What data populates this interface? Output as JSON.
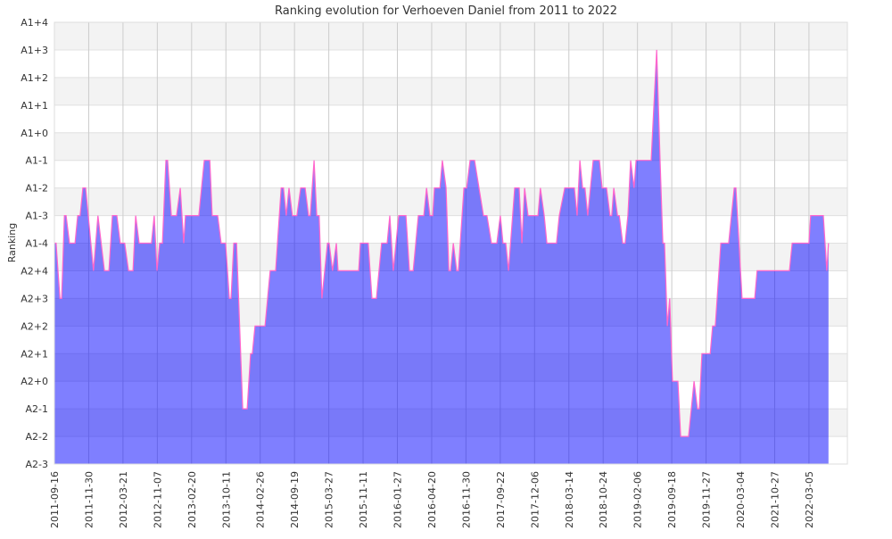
{
  "chart_data": {
    "type": "area",
    "title": "Ranking evolution for Verhoeven Daniel from 2011 to 2022",
    "xlabel": "",
    "ylabel": "Ranking",
    "y_categories": [
      "A2-3",
      "A2-2",
      "A2-1",
      "A2+0",
      "A2+1",
      "A2+2",
      "A2+3",
      "A2+4",
      "A1-4",
      "A1-3",
      "A1-2",
      "A1-1",
      "A1+0",
      "A1+1",
      "A1+2",
      "A1+3",
      "A1+4"
    ],
    "x_tick_labels": [
      "2011-09-16",
      "2011-11-30",
      "2012-03-21",
      "2012-11-07",
      "2013-02-20",
      "2013-10-11",
      "2014-02-26",
      "2014-09-19",
      "2015-03-27",
      "2015-11-11",
      "2016-01-27",
      "2016-04-20",
      "2016-11-30",
      "2017-09-22",
      "2017-12-06",
      "2018-03-14",
      "2018-10-24",
      "2019-02-06",
      "2019-09-18",
      "2019-11-27",
      "2020-03-04",
      "2021-10-27",
      "2022-03-05"
    ],
    "x_units": "tick index (0 = first tick label)",
    "grid": true,
    "colors": {
      "fill": "#0000ff",
      "line": "#ff66cc",
      "band": "#f3f3f3",
      "grid": "#cccccc"
    },
    "series": [
      {
        "name": "Verhoeven Daniel",
        "points": [
          [
            0,
            8
          ],
          [
            0.05,
            8
          ],
          [
            0.16,
            6
          ],
          [
            0.21,
            6
          ],
          [
            0.29,
            9
          ],
          [
            0.34,
            9
          ],
          [
            0.44,
            8
          ],
          [
            0.6,
            8
          ],
          [
            0.68,
            9
          ],
          [
            0.75,
            9
          ],
          [
            0.83,
            10
          ],
          [
            0.91,
            10
          ],
          [
            1.14,
            7
          ],
          [
            1.27,
            9
          ],
          [
            1.46,
            7
          ],
          [
            1.59,
            7
          ],
          [
            1.69,
            9
          ],
          [
            1.82,
            9
          ],
          [
            1.92,
            8
          ],
          [
            2.05,
            8
          ],
          [
            2.16,
            7
          ],
          [
            2.29,
            7
          ],
          [
            2.37,
            9
          ],
          [
            2.47,
            8
          ],
          [
            2.83,
            8
          ],
          [
            2.91,
            9
          ],
          [
            2.99,
            7
          ],
          [
            3.07,
            8
          ],
          [
            3.15,
            8
          ],
          [
            3.25,
            11
          ],
          [
            3.3,
            11
          ],
          [
            3.41,
            9
          ],
          [
            3.56,
            9
          ],
          [
            3.67,
            10
          ],
          [
            3.77,
            8
          ],
          [
            3.82,
            9
          ],
          [
            4.21,
            9
          ],
          [
            4.37,
            11
          ],
          [
            4.53,
            11
          ],
          [
            4.6,
            9
          ],
          [
            4.76,
            9
          ],
          [
            4.86,
            8
          ],
          [
            4.99,
            8
          ],
          [
            5.1,
            6
          ],
          [
            5.15,
            6
          ],
          [
            5.23,
            8
          ],
          [
            5.31,
            8
          ],
          [
            5.49,
            2
          ],
          [
            5.62,
            2
          ],
          [
            5.72,
            4
          ],
          [
            5.77,
            4
          ],
          [
            5.85,
            5
          ],
          [
            6.14,
            5
          ],
          [
            6.29,
            7
          ],
          [
            6.45,
            7
          ],
          [
            6.61,
            10
          ],
          [
            6.68,
            10
          ],
          [
            6.76,
            9
          ],
          [
            6.84,
            10
          ],
          [
            6.94,
            9
          ],
          [
            7.07,
            9
          ],
          [
            7.18,
            10
          ],
          [
            7.31,
            10
          ],
          [
            7.41,
            9
          ],
          [
            7.46,
            9
          ],
          [
            7.57,
            11
          ],
          [
            7.65,
            9
          ],
          [
            7.72,
            9
          ],
          [
            7.8,
            6
          ],
          [
            7.96,
            8
          ],
          [
            8.01,
            8
          ],
          [
            8.11,
            7
          ],
          [
            8.22,
            8
          ],
          [
            8.27,
            7
          ],
          [
            8.87,
            7
          ],
          [
            8.92,
            8
          ],
          [
            9.15,
            8
          ],
          [
            9.26,
            6
          ],
          [
            9.39,
            6
          ],
          [
            9.54,
            8
          ],
          [
            9.7,
            8
          ],
          [
            9.78,
            9
          ],
          [
            9.88,
            7
          ],
          [
            10.04,
            9
          ],
          [
            10.25,
            9
          ],
          [
            10.35,
            7
          ],
          [
            10.46,
            7
          ],
          [
            10.61,
            9
          ],
          [
            10.77,
            9
          ],
          [
            10.85,
            10
          ],
          [
            10.95,
            9
          ],
          [
            11.03,
            9
          ],
          [
            11.08,
            10
          ],
          [
            11.24,
            10
          ],
          [
            11.31,
            11
          ],
          [
            11.42,
            10
          ],
          [
            11.5,
            7
          ],
          [
            11.55,
            7
          ],
          [
            11.63,
            8
          ],
          [
            11.73,
            7
          ],
          [
            11.78,
            7
          ],
          [
            11.94,
            10
          ],
          [
            12.02,
            10
          ],
          [
            12.12,
            11
          ],
          [
            12.25,
            11
          ],
          [
            12.38,
            10
          ],
          [
            12.51,
            9
          ],
          [
            12.61,
            9
          ],
          [
            12.74,
            8
          ],
          [
            12.9,
            8
          ],
          [
            13,
            9
          ],
          [
            13.08,
            8
          ],
          [
            13.16,
            8
          ],
          [
            13.24,
            7
          ],
          [
            13.42,
            10
          ],
          [
            13.55,
            10
          ],
          [
            13.63,
            8
          ],
          [
            13.71,
            10
          ],
          [
            13.81,
            9
          ],
          [
            14.1,
            9
          ],
          [
            14.17,
            10
          ],
          [
            14.28,
            9
          ],
          [
            14.36,
            8
          ],
          [
            14.64,
            8
          ],
          [
            14.72,
            9
          ],
          [
            14.88,
            10
          ],
          [
            15.16,
            10
          ],
          [
            15.24,
            9
          ],
          [
            15.32,
            11
          ],
          [
            15.4,
            10
          ],
          [
            15.47,
            10
          ],
          [
            15.55,
            9
          ],
          [
            15.71,
            11
          ],
          [
            15.89,
            11
          ],
          [
            15.97,
            10
          ],
          [
            16.1,
            10
          ],
          [
            16.2,
            9
          ],
          [
            16.25,
            9
          ],
          [
            16.31,
            10
          ],
          [
            16.42,
            9
          ],
          [
            16.47,
            9
          ],
          [
            16.57,
            8
          ],
          [
            16.64,
            8
          ],
          [
            16.72,
            9
          ],
          [
            16.8,
            11
          ],
          [
            16.9,
            10
          ],
          [
            16.96,
            11
          ],
          [
            17.4,
            11
          ],
          [
            17.56,
            15
          ],
          [
            17.66,
            11
          ],
          [
            17.74,
            8
          ],
          [
            17.79,
            8
          ],
          [
            17.87,
            5
          ],
          [
            17.94,
            6
          ],
          [
            18.02,
            3
          ],
          [
            18.18,
            3
          ],
          [
            18.26,
            1
          ],
          [
            18.49,
            1
          ],
          [
            18.65,
            3
          ],
          [
            18.75,
            2
          ],
          [
            18.8,
            2
          ],
          [
            18.88,
            4
          ],
          [
            19.12,
            4
          ],
          [
            19.19,
            5
          ],
          [
            19.27,
            5
          ],
          [
            19.43,
            8
          ],
          [
            19.66,
            8
          ],
          [
            19.82,
            10
          ],
          [
            19.87,
            10
          ],
          [
            20.05,
            6
          ],
          [
            20.42,
            6
          ],
          [
            20.49,
            7
          ],
          [
            21.43,
            7
          ],
          [
            21.51,
            8
          ],
          [
            22,
            8
          ],
          [
            22.05,
            9
          ],
          [
            22.42,
            9
          ],
          [
            22.52,
            7
          ],
          [
            22.57,
            8
          ]
        ]
      }
    ]
  }
}
